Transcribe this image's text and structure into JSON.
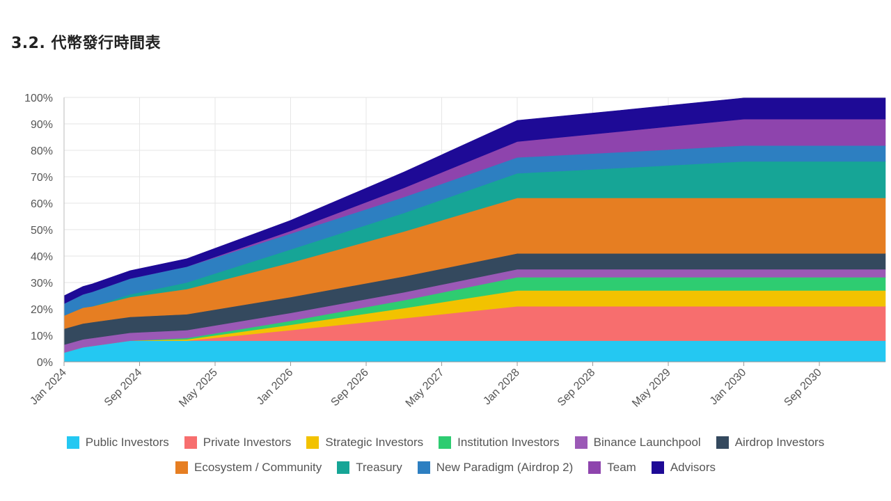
{
  "page": {
    "title": "3.2. 代幣發行時間表"
  },
  "chart_data": {
    "type": "area",
    "stacked": true,
    "title": "",
    "xlabel": "",
    "ylabel": "",
    "ylim": [
      0,
      100
    ],
    "y_unit": "%",
    "y_ticks": [
      "0%",
      "10%",
      "20%",
      "30%",
      "40%",
      "50%",
      "60%",
      "70%",
      "80%",
      "90%",
      "100%"
    ],
    "x_ticks": [
      "Jan 2024",
      "Sep 2024",
      "May 2025",
      "Jan 2026",
      "Sep 2026",
      "May 2027",
      "Jan 2028",
      "Sep 2028",
      "May 2029",
      "Jan 2030",
      "Sep 2030"
    ],
    "x_start": "Jan 2024",
    "x_end": "Apr 2031",
    "grid": true,
    "legend_position": "bottom",
    "x": [
      "Jan 2024",
      "Mar 2024",
      "Apr 2024",
      "Aug 2024",
      "Feb 2025",
      "Jan 2026",
      "Jan 2027",
      "Jan 2028",
      "Jan 2029",
      "Jan 2030",
      "Apr 2031"
    ],
    "series": [
      {
        "name": "Public Investors",
        "color": "#24c8f2",
        "values": [
          3.5,
          5.5,
          6,
          8,
          8,
          8,
          8,
          8,
          8,
          8,
          8
        ]
      },
      {
        "name": "Private Investors",
        "color": "#f76e6e",
        "values": [
          0,
          0,
          0,
          0,
          0,
          4,
          8.5,
          13,
          13,
          13,
          13
        ]
      },
      {
        "name": "Strategic Investors",
        "color": "#f2c200",
        "values": [
          0,
          0,
          0,
          0,
          0.5,
          2,
          3.8,
          6,
          6,
          6,
          6
        ]
      },
      {
        "name": "Institution Investors",
        "color": "#2ecc71",
        "values": [
          0,
          0,
          0,
          0,
          0.5,
          1.5,
          3,
          5,
          5,
          5,
          5
        ]
      },
      {
        "name": "Binance Launchpool",
        "color": "#9b59b6",
        "values": [
          3,
          3,
          3,
          3,
          3,
          3,
          3,
          3,
          3,
          3,
          3
        ]
      },
      {
        "name": "Airdrop Investors",
        "color": "#34495e",
        "values": [
          6,
          6,
          6,
          6,
          6,
          6,
          6,
          6,
          6,
          6,
          6
        ]
      },
      {
        "name": "Ecosystem / Community",
        "color": "#e67e22",
        "values": [
          5,
          6,
          6,
          7.5,
          9.5,
          13,
          17,
          21,
          21,
          21,
          21
        ]
      },
      {
        "name": "Treasury",
        "color": "#16a596",
        "values": [
          0,
          0,
          0,
          1,
          2.5,
          5,
          7,
          9.3,
          11.5,
          13.8,
          13.8
        ]
      },
      {
        "name": "New Paradigm (Airdrop 2)",
        "color": "#2d7fc1",
        "values": [
          4.5,
          5,
          5.5,
          6,
          6,
          6,
          6,
          6,
          6,
          6,
          6
        ]
      },
      {
        "name": "Team",
        "color": "#8e44ad",
        "values": [
          0,
          0,
          0,
          0,
          0,
          1,
          3.5,
          6,
          8,
          10,
          10
        ]
      },
      {
        "name": "Advisors",
        "color": "#1e0a96",
        "values": [
          3,
          3,
          3,
          3,
          3,
          4,
          6,
          8,
          8,
          8,
          8
        ]
      }
    ]
  }
}
